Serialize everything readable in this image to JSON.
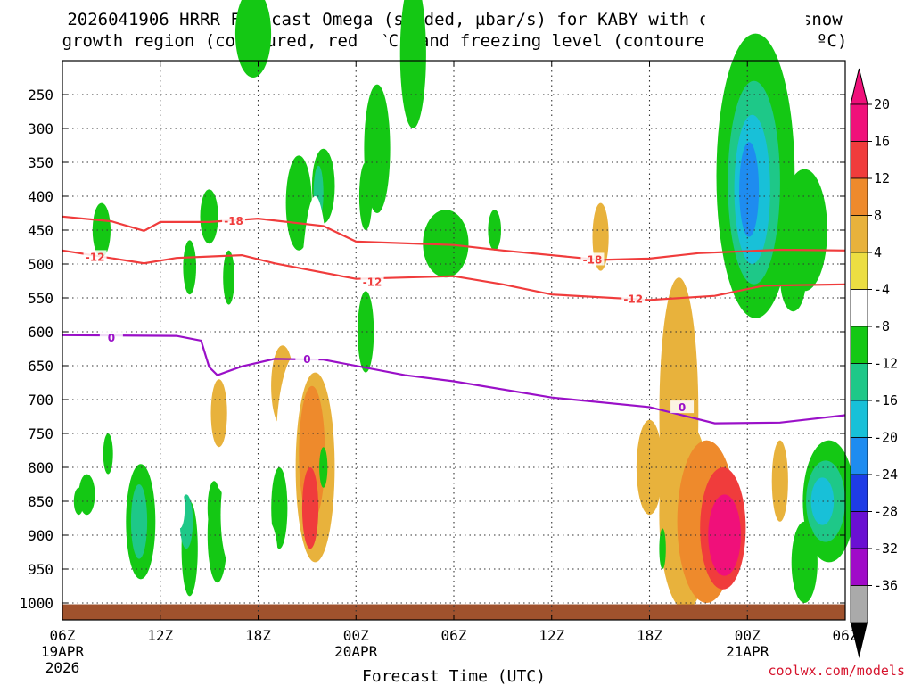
{
  "chart_data": {
    "type": "contour-time-height",
    "title_line1": "2026041906 HRRR Forecast Omega (shaded, µbar/s) for KABY with dendritic snow",
    "title_line2": "growth region (contoured, red, ºC) and freezing level (contoured, purple, ºC)",
    "xlabel": "Forecast Time (UTC)",
    "credit": "coolwx.com/models",
    "x_ticks": [
      {
        "hour": 0,
        "label": "06Z",
        "sub": "19APR",
        "sub2": "2026"
      },
      {
        "hour": 6,
        "label": "12Z"
      },
      {
        "hour": 12,
        "label": "18Z"
      },
      {
        "hour": 18,
        "label": "00Z",
        "sub": "20APR"
      },
      {
        "hour": 24,
        "label": "06Z"
      },
      {
        "hour": 30,
        "label": "12Z"
      },
      {
        "hour": 36,
        "label": "18Z"
      },
      {
        "hour": 42,
        "label": "00Z",
        "sub": "21APR"
      },
      {
        "hour": 48,
        "label": "06Z"
      }
    ],
    "y_ticks": [
      250,
      300,
      350,
      400,
      450,
      500,
      550,
      600,
      650,
      700,
      750,
      800,
      850,
      900,
      950,
      1000
    ],
    "y_range_hpa": [
      200,
      1025
    ],
    "colorbar": {
      "tick_labels": [
        "20",
        "16",
        "12",
        "8",
        "4",
        "-4",
        "-8",
        "-12",
        "-16",
        "-20",
        "-24",
        "-28",
        "-32",
        "-36"
      ],
      "bands": [
        {
          "lo": 20,
          "hi": 24,
          "color": "#f0107a"
        },
        {
          "lo": 16,
          "hi": 20,
          "color": "#f03c3c"
        },
        {
          "lo": 12,
          "hi": 16,
          "color": "#ee8a2c"
        },
        {
          "lo": 8,
          "hi": 12,
          "color": "#e8b23c"
        },
        {
          "lo": 4,
          "hi": 8,
          "color": "#ecde42"
        },
        {
          "lo": -4,
          "hi": 4,
          "color": "#ffffff"
        },
        {
          "lo": -8,
          "hi": -4,
          "color": "#14c814"
        },
        {
          "lo": -12,
          "hi": -8,
          "color": "#1ec888"
        },
        {
          "lo": -16,
          "hi": -12,
          "color": "#18c0d8"
        },
        {
          "lo": -20,
          "hi": -16,
          "color": "#1e8cf0"
        },
        {
          "lo": -24,
          "hi": -20,
          "color": "#1e3ce6"
        },
        {
          "lo": -28,
          "hi": -24,
          "color": "#6a10d2"
        },
        {
          "lo": -32,
          "hi": -28,
          "color": "#a00ac8"
        },
        {
          "lo": -36,
          "hi": -32,
          "color": "#aaaaaa"
        }
      ]
    },
    "contours": [
      {
        "name": "-18C isotherm",
        "label": "-18",
        "color": "#f03c3c",
        "points": [
          [
            0,
            430
          ],
          [
            3,
            437
          ],
          [
            5,
            451
          ],
          [
            6,
            438
          ],
          [
            9,
            438
          ],
          [
            12,
            433
          ],
          [
            16,
            444
          ],
          [
            18,
            467
          ],
          [
            24,
            472
          ],
          [
            27,
            480
          ],
          [
            33,
            494
          ],
          [
            36,
            492
          ],
          [
            39,
            484
          ],
          [
            44,
            479
          ],
          [
            48,
            480
          ]
        ]
      },
      {
        "name": "-12C isotherm",
        "label": "-12",
        "color": "#f03c3c",
        "points": [
          [
            0,
            480
          ],
          [
            5,
            499
          ],
          [
            7,
            491
          ],
          [
            11,
            487
          ],
          [
            13,
            499
          ],
          [
            18,
            522
          ],
          [
            24,
            518
          ],
          [
            27,
            530
          ],
          [
            30,
            545
          ],
          [
            36,
            553
          ],
          [
            40,
            547
          ],
          [
            43,
            532
          ],
          [
            48,
            530
          ]
        ]
      },
      {
        "name": "0C isotherm (freezing level)",
        "label": "0",
        "color": "#9a10c8",
        "points": [
          [
            0,
            605
          ],
          [
            7,
            606
          ],
          [
            8.5,
            613
          ],
          [
            9,
            652
          ],
          [
            9.5,
            664
          ],
          [
            11,
            651
          ],
          [
            13,
            640
          ],
          [
            16,
            641
          ],
          [
            21,
            664
          ],
          [
            24,
            673
          ],
          [
            30,
            697
          ],
          [
            36,
            711
          ],
          [
            40,
            735
          ],
          [
            44,
            734
          ],
          [
            48,
            723
          ]
        ]
      }
    ],
    "omega_regions": [
      {
        "name": "upper positive streaks",
        "sign": "+",
        "values": [
          4,
          8
        ]
      },
      {
        "name": "upper negative plumes",
        "sign": "-",
        "values": [
          -4,
          -8,
          -12,
          -16
        ]
      },
      {
        "name": "19Z-20Z low-level ascent core",
        "sign": "+",
        "values": [
          4,
          8,
          12,
          16
        ]
      },
      {
        "name": "21APR 00Z low-level maximum",
        "sign": "+",
        "values": [
          4,
          8,
          12,
          16,
          20
        ]
      },
      {
        "name": "21APR 00Z-01Z upper descent plume",
        "sign": "-",
        "values": [
          -4,
          -8,
          -12,
          -16
        ]
      }
    ],
    "terrain_color": "#a0522d"
  }
}
